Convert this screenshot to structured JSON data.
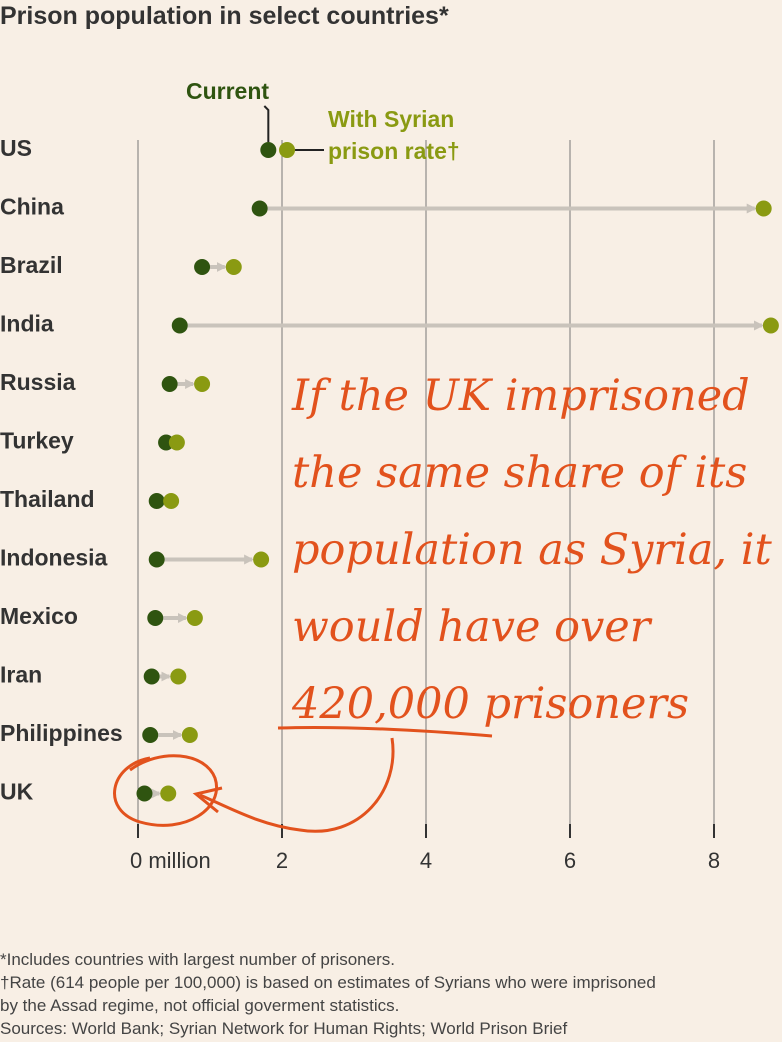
{
  "chart_data": {
    "type": "dumbbell",
    "title": "Prison population in select countries*",
    "categories": [
      "US",
      "China",
      "Brazil",
      "India",
      "Russia",
      "Turkey",
      "Thailand",
      "Indonesia",
      "Mexico",
      "Iran",
      "Philippines",
      "UK"
    ],
    "series": [
      {
        "name": "Current",
        "color": "#2f5410",
        "values": [
          1.81,
          1.69,
          0.89,
          0.58,
          0.44,
          0.39,
          0.26,
          0.26,
          0.24,
          0.19,
          0.17,
          0.09
        ]
      },
      {
        "name": "With Syrian prison rate†",
        "color": "#8a9a12",
        "values": [
          2.07,
          8.69,
          1.33,
          8.79,
          0.89,
          0.54,
          0.46,
          1.71,
          0.79,
          0.56,
          0.72,
          0.42
        ]
      }
    ],
    "xlim": [
      0,
      8.9
    ],
    "xticks": [
      {
        "value": 0,
        "label": "0 million"
      },
      2,
      4,
      6,
      8
    ],
    "grid": true,
    "annotation": "If the UK imprisoned the same share of its population as Syria, it would have over 420,000 prisoners",
    "footnotes": [
      "*Includes countries with largest number of prisoners.",
      "†Rate (614 people per 100,000) is based on estimates of Syrians who were imprisoned by the Assad regime, not official goverment statistics.",
      "Sources: World Bank; Syrian Network for Human Rights; World Prison Brief"
    ]
  }
}
